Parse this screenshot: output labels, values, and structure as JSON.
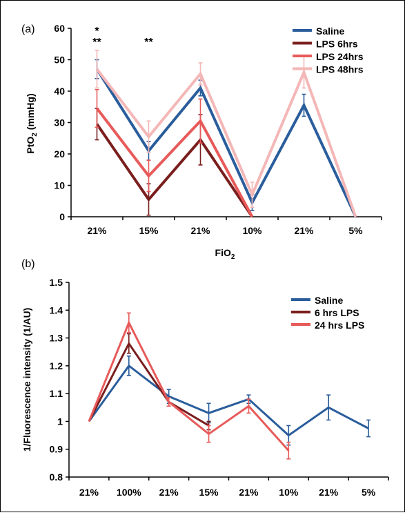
{
  "colors": {
    "saline": "#2A5D9C",
    "lps6": "#7A1E1E",
    "lps24": "#E85A5A",
    "lps48": "#F4B7B7"
  },
  "chart_data": [
    {
      "type": "line",
      "panel_label": "(a)",
      "ylabel_main": "PtO",
      "ylabel_sub": "2",
      "ylabel_tail": " (mmHg)",
      "xlabel_main": "FiO",
      "xlabel_sub": "2",
      "ylim": [
        0,
        60
      ],
      "yticks": [
        "0",
        "10",
        "20",
        "30",
        "40",
        "50",
        "60"
      ],
      "categories": [
        "21%",
        "15%",
        "21%",
        "10%",
        "21%",
        "5%"
      ],
      "legend_position": "top-right",
      "annotations": [
        {
          "text": "*",
          "category_index": 0
        },
        {
          "text": "**",
          "category_index": 0
        },
        {
          "text": "**",
          "category_index": 1
        }
      ],
      "series": [
        {
          "name": "Saline",
          "color_key": "saline",
          "values": [
            47,
            21,
            41,
            4.5,
            35.5,
            0
          ],
          "errors": [
            3,
            3,
            2.5,
            2.5,
            3.5,
            0
          ]
        },
        {
          "name": "LPS 6hrs",
          "color_key": "lps6",
          "values": [
            29.5,
            5.5,
            24.5,
            0,
            null,
            null
          ],
          "errors": [
            5,
            5,
            8,
            0,
            null,
            null
          ]
        },
        {
          "name": "LPS 24hrs",
          "color_key": "lps24",
          "values": [
            34.5,
            13,
            30.5,
            0,
            null,
            null
          ],
          "errors": [
            6,
            5,
            7,
            0,
            null,
            null
          ]
        },
        {
          "name": "LPS 48hrs",
          "color_key": "lps48",
          "values": [
            47,
            25.5,
            45.5,
            7,
            46,
            0
          ],
          "errors": [
            6,
            5,
            3.5,
            4,
            5,
            0
          ]
        }
      ]
    },
    {
      "type": "line",
      "panel_label": "(b)",
      "ylabel": "1/Fluorescence intensity (1/AU)",
      "ylim": [
        0.8,
        1.5
      ],
      "yticks": [
        "0.8",
        "0.9",
        "1",
        "1.1",
        "1.2",
        "1.3",
        "1.4",
        "1.5"
      ],
      "categories": [
        "21%",
        "100%",
        "21%",
        "15%",
        "21%",
        "10%",
        "21%",
        "5%"
      ],
      "legend_position": "top-right",
      "series": [
        {
          "name": "Saline",
          "color_key": "saline",
          "values": [
            1.0,
            1.2,
            1.09,
            1.03,
            1.08,
            0.95,
            1.05,
            0.975
          ],
          "errors": [
            0,
            0.035,
            0.025,
            0.035,
            0.015,
            0.035,
            0.045,
            0.03
          ]
        },
        {
          "name": "6 hrs LPS",
          "color_key": "lps6",
          "values": [
            1.0,
            1.28,
            1.07,
            0.985,
            null,
            null,
            null,
            null
          ],
          "errors": [
            0,
            0.035,
            0.015,
            0.015,
            null,
            null,
            null,
            null
          ]
        },
        {
          "name": "24 hrs LPS",
          "color_key": "lps24",
          "values": [
            1.0,
            1.355,
            1.07,
            0.955,
            1.055,
            0.895,
            null,
            null
          ],
          "errors": [
            0,
            0.035,
            0.015,
            0.03,
            0.025,
            0.03,
            null,
            null
          ]
        }
      ]
    }
  ]
}
